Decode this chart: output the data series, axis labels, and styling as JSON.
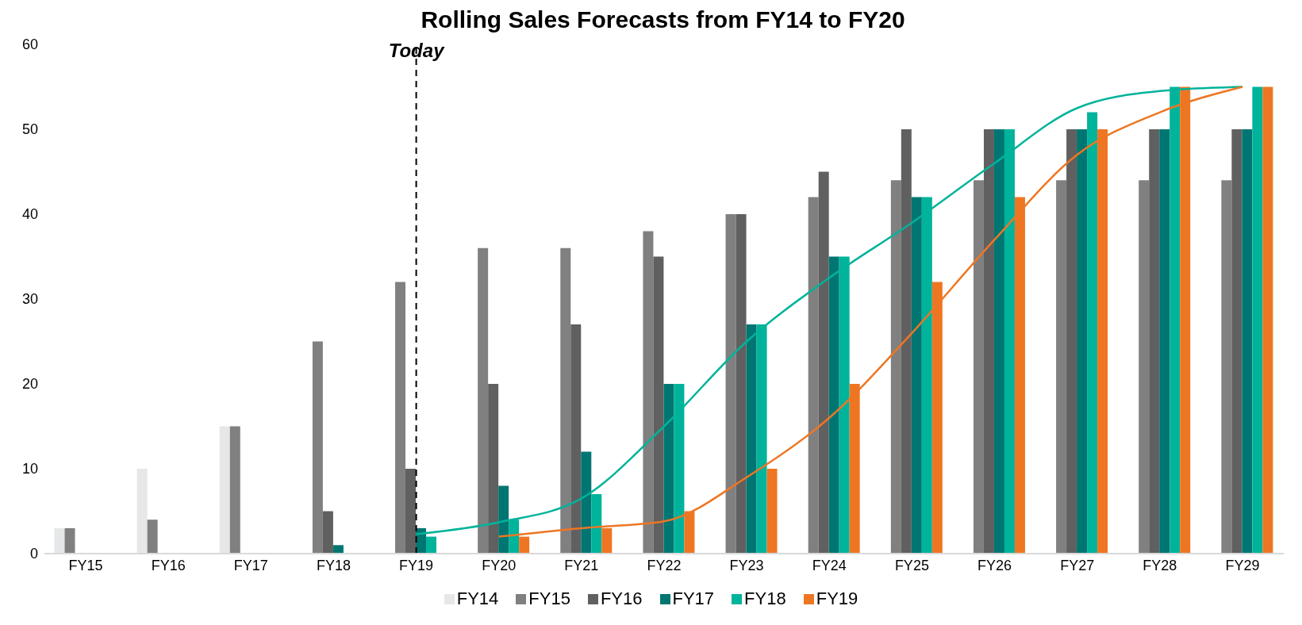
{
  "chart_data": {
    "type": "bar",
    "title": "Rolling Sales Forecasts from FY14 to FY20",
    "categories": [
      "FY15",
      "FY16",
      "FY17",
      "FY18",
      "FY19",
      "FY20",
      "FY21",
      "FY22",
      "FY23",
      "FY24",
      "FY25",
      "FY26",
      "FY27",
      "FY28",
      "FY29"
    ],
    "series": [
      {
        "name": "FY14",
        "color": "#e6e7e8",
        "values": [
          3,
          10,
          15,
          null,
          null,
          null,
          null,
          null,
          null,
          null,
          null,
          null,
          null,
          null,
          null
        ]
      },
      {
        "name": "FY15",
        "color": "#808080",
        "values": [
          3,
          4,
          15,
          25,
          32,
          36,
          36,
          38,
          40,
          42,
          44,
          44,
          44,
          44,
          44
        ]
      },
      {
        "name": "FY16",
        "color": "#606060",
        "values": [
          null,
          null,
          null,
          5,
          10,
          20,
          27,
          35,
          40,
          45,
          50,
          50,
          50,
          50,
          50
        ]
      },
      {
        "name": "FY17",
        "color": "#007672",
        "values": [
          null,
          null,
          null,
          1,
          3,
          8,
          12,
          20,
          27,
          35,
          42,
          50,
          50,
          50,
          50
        ]
      },
      {
        "name": "FY18",
        "color": "#00b39b",
        "values": [
          null,
          null,
          null,
          null,
          2,
          4,
          7,
          20,
          27,
          35,
          42,
          50,
          52,
          55,
          55
        ]
      },
      {
        "name": "FY19",
        "color": "#ee7623",
        "values": [
          null,
          null,
          null,
          null,
          null,
          2,
          3,
          5,
          10,
          20,
          32,
          42,
          50,
          55,
          55
        ]
      },
      {
        "type": "line",
        "color": "#00b39b",
        "values": [
          null,
          null,
          null,
          null,
          2.3,
          3.7,
          6.5,
          15,
          25,
          32.5,
          39,
          46,
          52.5,
          54.5,
          55
        ]
      },
      {
        "type": "line",
        "color": "#ee7623",
        "values": [
          null,
          null,
          null,
          null,
          null,
          2,
          3,
          3.8,
          9,
          16,
          26,
          37,
          47,
          52,
          55
        ]
      }
    ],
    "ylim": [
      0,
      60
    ],
    "yticks": [
      0,
      10,
      20,
      30,
      40,
      50,
      60
    ],
    "grid": false,
    "legend": "bottom",
    "ref_lines": [
      {
        "axis": "x",
        "value": "FY19",
        "label": "Today",
        "line_style": "dashed",
        "color": "#000000"
      }
    ]
  }
}
